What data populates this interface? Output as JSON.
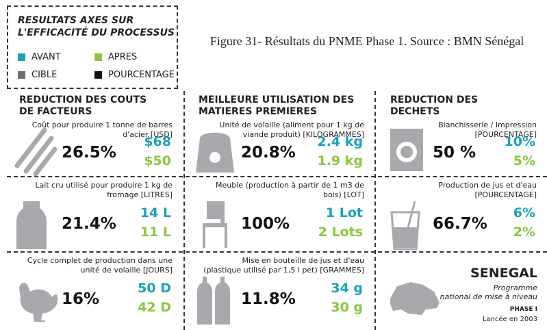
{
  "legend": {
    "title_lines": [
      "RESULTATS AXES SUR",
      "L'EFFICACITÉ DU PROCESSUS"
    ],
    "items": [
      {
        "label": "AVANT",
        "color": "#1ba3b5"
      },
      {
        "label": "APRES",
        "color": "#8cc63f"
      },
      {
        "label": "CIBLE",
        "color": "#6d6e71"
      },
      {
        "label": "POURCENTAGE",
        "color": "#111111"
      }
    ]
  },
  "caption": "Figure 31- Résultats du PNME Phase 1. Source : BMN Sénégal",
  "columns": [
    {
      "title_lines": [
        "REDUCTION DES COUTS",
        "DE FACTEURS"
      ],
      "cells": [
        {
          "description": "Coût pour produire 1 tonne de barres d'acier [USD]",
          "percentage": "26.5%",
          "before": "$68",
          "after": "$50"
        },
        {
          "description": "Lait cru utilisé pour produire 1 kg de fromage [LITRES]",
          "percentage": "21.4%",
          "before": "14 L",
          "after": "11 L"
        },
        {
          "description": "Cycle complet de production dans une unité de volaille [JOURS]",
          "percentage": "16%",
          "before": "50 D",
          "after": "42 D"
        }
      ]
    },
    {
      "title_lines": [
        "MEILLEURE UTILISATION DES",
        "MATIERES PREMIERES"
      ],
      "cells": [
        {
          "description": "Unité de volaille (aliment pour 1 kg de viande produit) [KILOGRAMMES]",
          "percentage": "20.8%",
          "before": "2.4 kg",
          "after": "1.9 kg"
        },
        {
          "description": "Meuble (production à partir de 1 m3 de bois) [LOT]",
          "percentage": "100%",
          "before": "1 Lot",
          "after": "2 Lots"
        },
        {
          "description": "Mise en bouteille de jus et d'eau (plastique utilisé par 1,5 l pet) [GRAMMES]",
          "percentage": "11.8%",
          "before": "34 g",
          "after": "30 g"
        }
      ]
    },
    {
      "title_lines": [
        "REDUCTION DES",
        "DECHETS"
      ],
      "cells": [
        {
          "description": "Blanchisserie / Impression [POURCENTAGE]",
          "percentage": "50 %",
          "before": "10%",
          "after": "5%"
        },
        {
          "description": "Production de jus et d'eau [POURCENTAGE]",
          "percentage": "66.7%",
          "before": "6%",
          "after": "2%"
        }
      ]
    }
  ],
  "senegal": {
    "title": "SENEGAL",
    "subtitle_lines": [
      "Programme",
      "national de mise à niveau"
    ],
    "phase": "PHASE I",
    "launched": "Lancée en 2003"
  }
}
